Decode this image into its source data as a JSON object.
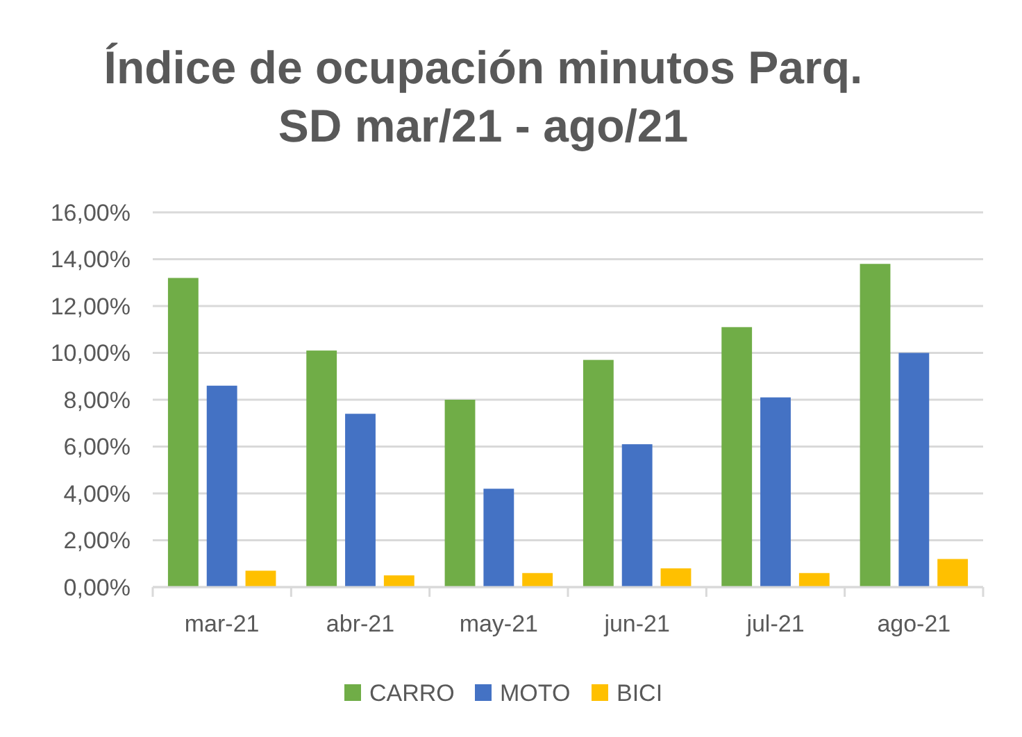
{
  "chart_data": {
    "type": "bar",
    "title": "Índice de ocupación minutos Parq.\nSD mar/21 - ago/21",
    "categories": [
      "mar-21",
      "abr-21",
      "may-21",
      "jun-21",
      "jul-21",
      "ago-21"
    ],
    "series": [
      {
        "name": "CARRO",
        "color": "#70ad47",
        "values": [
          13.2,
          10.1,
          8.0,
          9.7,
          11.1,
          13.8
        ]
      },
      {
        "name": "MOTO",
        "color": "#4472c4",
        "values": [
          8.6,
          7.4,
          4.2,
          6.1,
          8.1,
          10.0
        ]
      },
      {
        "name": "BICI",
        "color": "#ffc000",
        "values": [
          0.7,
          0.5,
          0.6,
          0.8,
          0.6,
          1.2
        ]
      }
    ],
    "ylim": [
      0,
      16
    ],
    "yticks": [
      {
        "value": 0,
        "label": "0,00%"
      },
      {
        "value": 2,
        "label": "2,00%"
      },
      {
        "value": 4,
        "label": "4,00%"
      },
      {
        "value": 6,
        "label": "6,00%"
      },
      {
        "value": 8,
        "label": "8,00%"
      },
      {
        "value": 10,
        "label": "10,00%"
      },
      {
        "value": 12,
        "label": "12,00%"
      },
      {
        "value": 14,
        "label": "14,00%"
      },
      {
        "value": 16,
        "label": "16,00%"
      }
    ],
    "grid": "y",
    "legend": "bottom"
  }
}
